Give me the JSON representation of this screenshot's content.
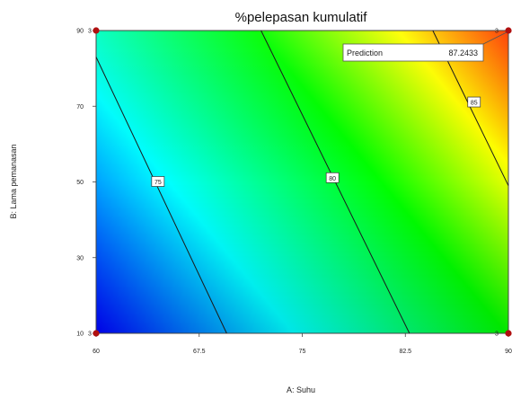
{
  "chart_data": {
    "type": "contour",
    "title": "%pelepasan kumulatif",
    "xlabel": "A: Suhu",
    "ylabel": "B: Lama pemanasan",
    "xlim": [
      60,
      90
    ],
    "ylim": [
      10,
      90
    ],
    "x_ticks": [
      "60",
      "67.5",
      "75",
      "82.5",
      "90"
    ],
    "x_tick_values": [
      60,
      67.5,
      75,
      82.5,
      90
    ],
    "y_ticks": [
      "10",
      "30",
      "50",
      "70",
      "90"
    ],
    "y_tick_values": [
      10,
      30,
      50,
      70,
      90
    ],
    "tick_markers": [
      "3",
      "3",
      "3",
      "3"
    ],
    "contours": [
      {
        "level": 75,
        "label": "75",
        "points": [
          [
            60,
            83
          ],
          [
            69.5,
            10
          ]
        ],
        "label_at": [
          64.5,
          50
        ]
      },
      {
        "level": 80,
        "label": "80",
        "points": [
          [
            72,
            90
          ],
          [
            82.8,
            10
          ]
        ],
        "label_at": [
          77.2,
          51
        ]
      },
      {
        "level": 85,
        "label": "85",
        "points": [
          [
            84.5,
            90
          ],
          [
            90,
            49
          ]
        ],
        "label_at": [
          87.5,
          71
        ]
      }
    ],
    "design_points": [
      [
        60,
        10
      ],
      [
        60,
        90
      ],
      [
        90,
        10
      ],
      [
        90,
        90
      ]
    ],
    "prediction": {
      "label": "Prediction",
      "value": "87.2433",
      "at": [
        90,
        90
      ]
    },
    "colors": [
      "#0000ff",
      "#00ffff",
      "#00ff00",
      "#ffff00",
      "#ff0000"
    ],
    "marker_color": "#b01010"
  }
}
